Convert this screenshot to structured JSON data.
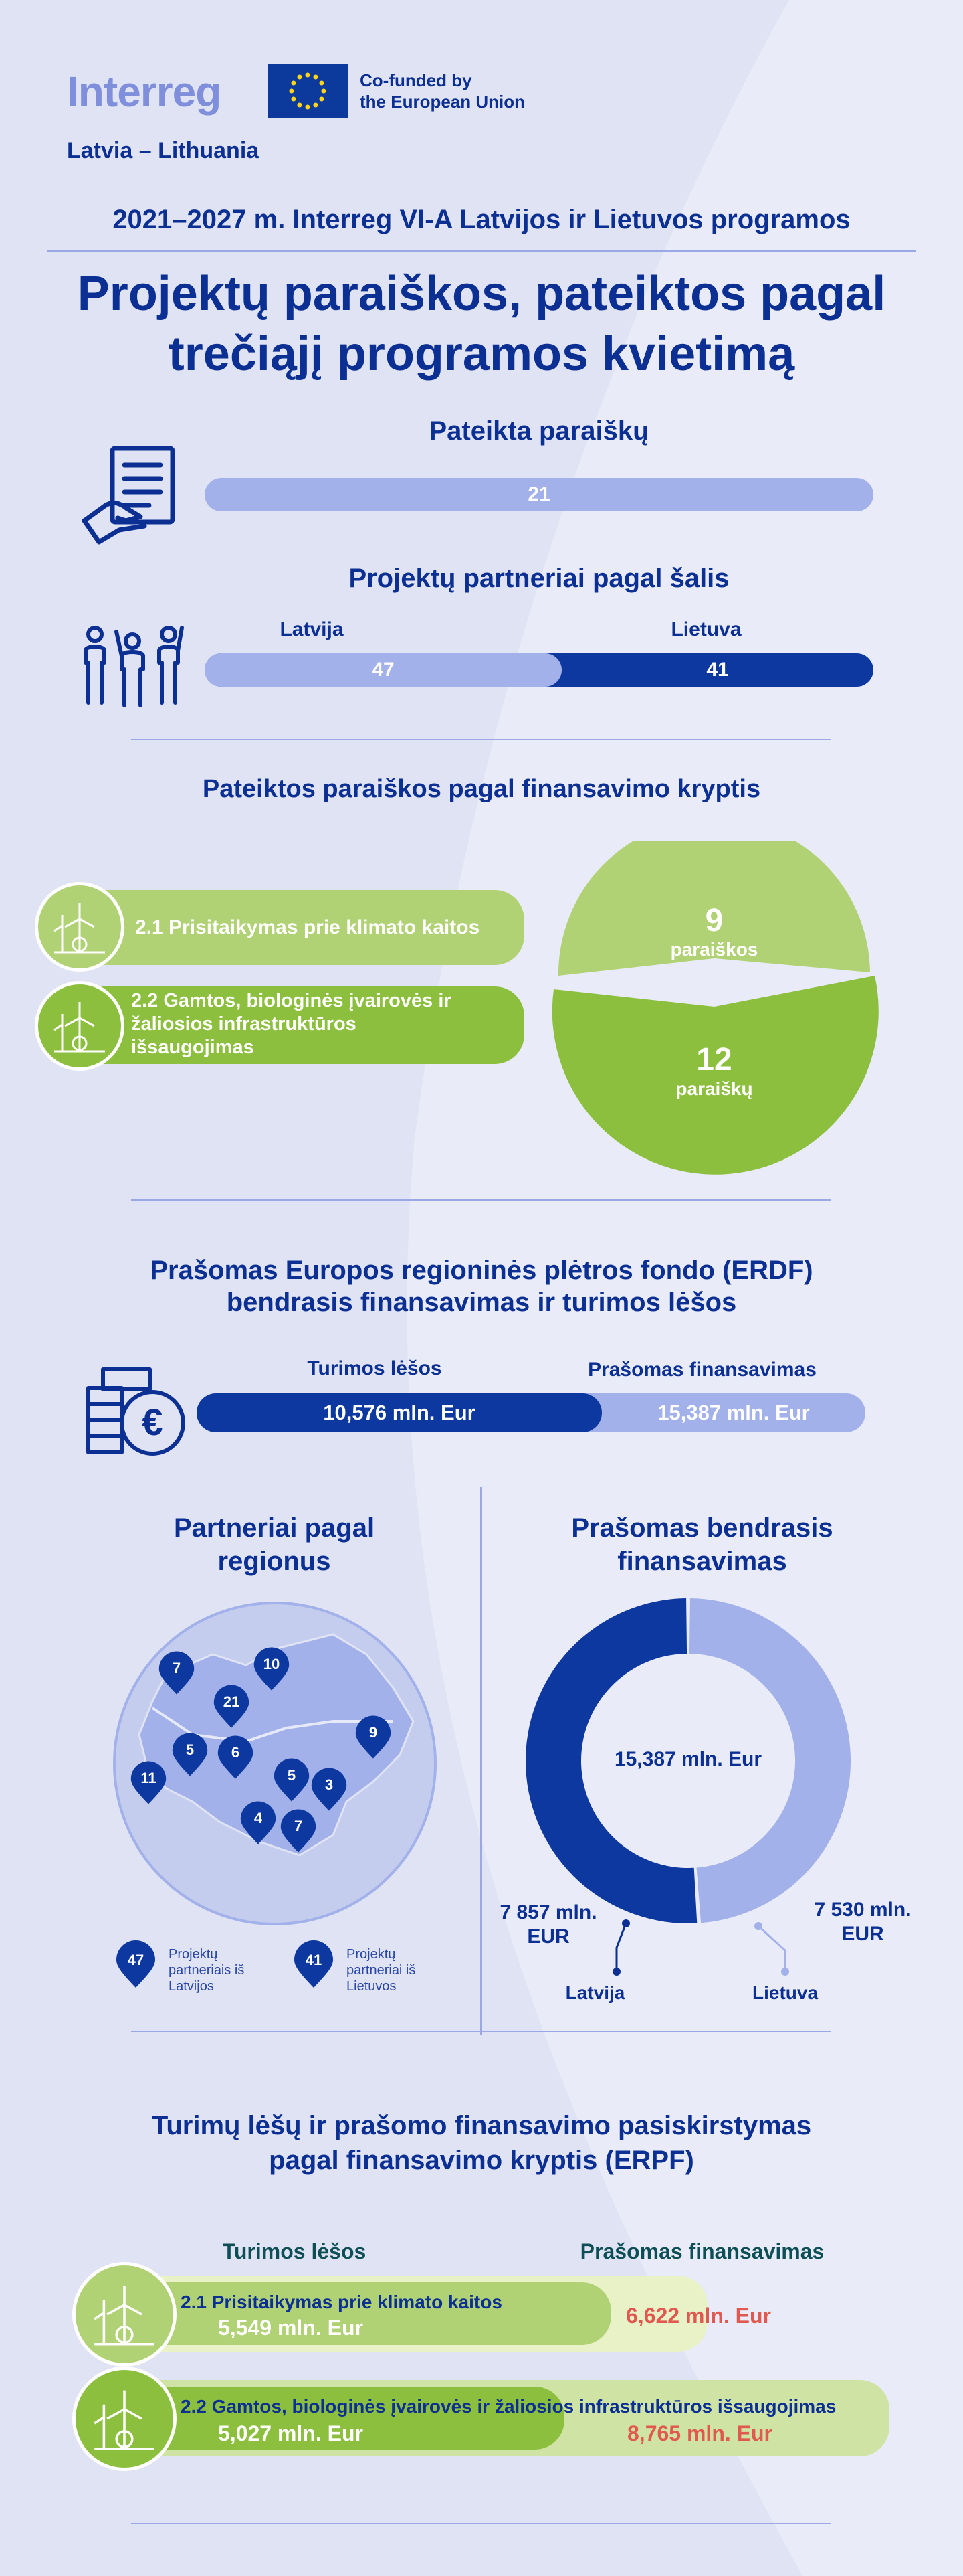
{
  "header": {
    "logo_brand": "Interreg",
    "cofunded_line1": "Co-funded by",
    "cofunded_line2": "the European Union",
    "logo_subtitle": "Latvia – Lithuania"
  },
  "program_title": "2021–2027 m. Interreg VI-A Latvijos ir Lietuvos programos",
  "main_title_line1": "Projektų paraiškos, pateiktos pagal",
  "main_title_line2": "trečiąjį programos kvietimą",
  "applications": {
    "title": "Pateikta paraiškų",
    "value": "21"
  },
  "partners_by_country": {
    "title": "Projektų partneriai pagal šalis",
    "latvia_label": "Latvija",
    "lithuania_label": "Lietuva",
    "latvia_value": "47",
    "lithuania_value": "41",
    "latvia_share": 0.534
  },
  "by_direction": {
    "title": "Pateiktos paraiškos pagal finansavimo kryptis",
    "item1_label": "2.1 Prisitaikymas prie klimato kaitos",
    "item2_label_l1": "2.2 Gamtos, biologinės įvairovės ir",
    "item2_label_l2": "žaliosios infrastruktūros",
    "item2_label_l3": "išsaugojimas",
    "pie_top_value": "9",
    "pie_top_unit": "paraiškos",
    "pie_bottom_value": "12",
    "pie_bottom_unit": "paraiškų",
    "colors": {
      "light_green": "#b0d275",
      "green": "#8cbf3e"
    }
  },
  "erdf": {
    "title_l1": "Prašomas Europos regioninės plėtros fondo (ERDF)",
    "title_l2": "bendrasis finansavimas ir turimos lėšos",
    "available_label": "Turimos lėšos",
    "requested_label": "Prašomas finansavimas",
    "available_value": "10,576 mln. Eur",
    "requested_value": "15,387 mln. Eur",
    "available_share": 0.687
  },
  "regions": {
    "title_l1": "Partneriai pagal",
    "title_l2": "regionus",
    "map_numbers": [
      "7",
      "10",
      "21",
      "9",
      "5",
      "6",
      "11",
      "5",
      "3",
      "4",
      "7"
    ],
    "legend_latvia_num": "47",
    "legend_latvia_l1": "Projektų",
    "legend_latvia_l2": "partneriais iš",
    "legend_latvia_l3": "Latvijos",
    "legend_lithuania_num": "41",
    "legend_lithuania_l1": "Projektų",
    "legend_lithuania_l2": "partneriai iš",
    "legend_lithuania_l3": "Lietuvos"
  },
  "total_funding": {
    "title_l1": "Prašomas bendrasis",
    "title_l2": "finansavimas",
    "center_value": "15,387 mln. Eur",
    "latvia_value_l1": "7 857 mln.",
    "latvia_value_l2": "EUR",
    "lithuania_value_l1": "7 530 mln.",
    "lithuania_value_l2": "EUR",
    "latvia_label": "Latvija",
    "lithuania_label": "Lietuva",
    "latvia_share": 0.5106
  },
  "distribution": {
    "title_l1": "Turimų lėšų ir prašomo finansavimo pasiskirstymas",
    "title_l2": "pagal finansavimo kryptis (ERPF)",
    "available_label": "Turimos lėšos",
    "requested_label": "Prašomas finansavimas",
    "row1_title": "2.1 Prisitaikymas prie klimato kaitos",
    "row1_available": "5,549 mln. Eur",
    "row1_requested": "6,622 mln. Eur",
    "row2_title": "2.2 Gamtos, biologinės įvairovės ir žaliosios infrastruktūros išsaugojimas",
    "row2_available": "5,027 mln. Eur",
    "row2_requested": "8,765 mln. Eur"
  }
}
